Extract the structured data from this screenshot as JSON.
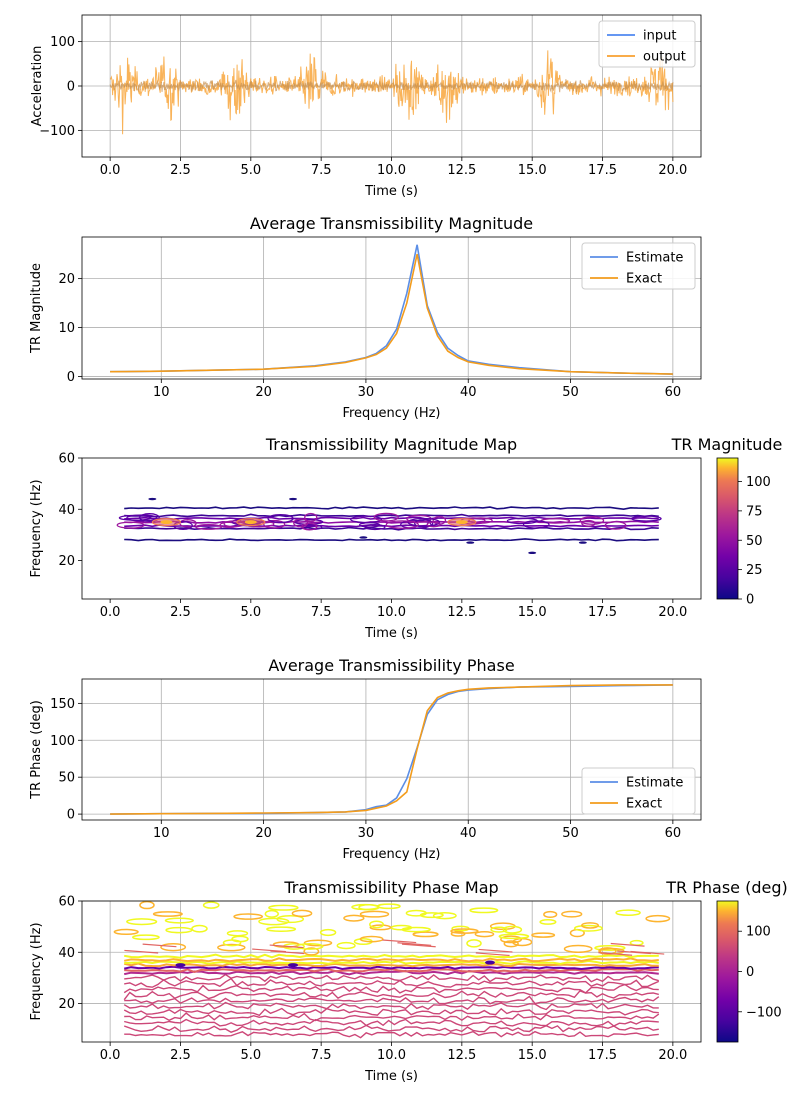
{
  "colors": {
    "input": "#4f88f0",
    "output": "#f8a030",
    "estimate": "#5b8ee6",
    "exact": "#f39c1c",
    "grid": "#b0b0b0"
  },
  "chart_data": [
    {
      "id": "time-history",
      "type": "line",
      "title": "",
      "xlabel": "Time (s)",
      "ylabel": "Acceleration",
      "xlim": [
        -1.0,
        21.0
      ],
      "ylim": [
        -160,
        160
      ],
      "xticks": [
        0.0,
        2.5,
        5.0,
        7.5,
        10.0,
        12.5,
        15.0,
        17.5,
        20.0
      ],
      "xtick_labels": [
        "0.0",
        "2.5",
        "5.0",
        "7.5",
        "10.0",
        "12.5",
        "15.0",
        "17.5",
        "20.0"
      ],
      "yticks": [
        -100,
        0,
        100
      ],
      "ytick_labels": [
        "−100",
        "0",
        "100"
      ],
      "grid": true,
      "legend": "top-right",
      "series": [
        {
          "name": "input",
          "color": "#4f88f0",
          "amplitude": 20
        },
        {
          "name": "output",
          "color": "#f8a030",
          "amplitude": 145,
          "burst_times": [
            0.5,
            2.0,
            4.5,
            7.2,
            10.5,
            12.0,
            15.6,
            19.5
          ]
        }
      ],
      "duration": 20.0
    },
    {
      "id": "avg-tr-magnitude",
      "type": "line",
      "title": "Average Transmissibility Magnitude",
      "xlabel": "Frequency (Hz)",
      "ylabel": "TR Magnitude",
      "xlim": [
        2.25,
        62.75
      ],
      "ylim": [
        -0.5,
        28.5
      ],
      "xticks": [
        10,
        20,
        30,
        40,
        50,
        60
      ],
      "xtick_labels": [
        "10",
        "20",
        "30",
        "40",
        "50",
        "60"
      ],
      "yticks": [
        0,
        10,
        20
      ],
      "ytick_labels": [
        "0",
        "10",
        "20"
      ],
      "grid": true,
      "legend": "top-right",
      "x": [
        5,
        10,
        15,
        20,
        25,
        28,
        30,
        31,
        32,
        33,
        34,
        35,
        36,
        37,
        38,
        39,
        40,
        42,
        45,
        50,
        55,
        60
      ],
      "series": [
        {
          "name": "Estimate",
          "color": "#5b8ee6",
          "values": [
            1.0,
            1.1,
            1.3,
            1.5,
            2.2,
            3.0,
            3.9,
            4.7,
            6.3,
            9.7,
            17.0,
            26.9,
            14.5,
            9.0,
            5.8,
            4.3,
            3.2,
            2.5,
            1.8,
            1.0,
            0.7,
            0.5
          ]
        },
        {
          "name": "Exact",
          "color": "#f39c1c",
          "values": [
            1.0,
            1.1,
            1.3,
            1.5,
            2.1,
            2.9,
            3.8,
            4.5,
            5.8,
            8.8,
            15.0,
            25.0,
            14.0,
            8.3,
            5.2,
            3.9,
            3.0,
            2.3,
            1.6,
            1.0,
            0.7,
            0.5
          ]
        }
      ]
    },
    {
      "id": "tr-magnitude-map",
      "type": "heatmap",
      "title": "Transmissibility Magnitude Map",
      "xlabel": "Time (s)",
      "ylabel": "Frequency (Hz)",
      "xlim": [
        -1.0,
        21.0
      ],
      "ylim": [
        5,
        60
      ],
      "xticks": [
        0.0,
        2.5,
        5.0,
        7.5,
        10.0,
        12.5,
        15.0,
        17.5,
        20.0
      ],
      "xtick_labels": [
        "0.0",
        "2.5",
        "5.0",
        "7.5",
        "10.0",
        "12.5",
        "15.0",
        "17.5",
        "20.0"
      ],
      "yticks": [
        20,
        40,
        60
      ],
      "ytick_labels": [
        "20",
        "40",
        "60"
      ],
      "grid": false,
      "colorbar": {
        "label": "TR Magnitude",
        "min": 0,
        "max": 120,
        "ticks": [
          0,
          25,
          50,
          75,
          100
        ],
        "tick_labels": [
          "0",
          "25",
          "50",
          "75",
          "100"
        ]
      },
      "band_hz": [
        27,
        41
      ],
      "peak_hz": 35,
      "time_range": [
        0.5,
        19.5
      ],
      "hot_spots": [
        {
          "t": 2.0,
          "f": 35,
          "v": 95
        },
        {
          "t": 5.0,
          "f": 35,
          "v": 110
        },
        {
          "t": 12.5,
          "f": 35,
          "v": 80
        }
      ]
    },
    {
      "id": "avg-tr-phase",
      "type": "line",
      "title": "Average Transmissibility Phase",
      "xlabel": "Frequency (Hz)",
      "ylabel": "TR Phase (deg)",
      "xlim": [
        2.25,
        62.75
      ],
      "ylim": [
        -8,
        183
      ],
      "xticks": [
        10,
        20,
        30,
        40,
        50,
        60
      ],
      "xtick_labels": [
        "10",
        "20",
        "30",
        "40",
        "50",
        "60"
      ],
      "yticks": [
        0,
        50,
        100,
        150
      ],
      "ytick_labels": [
        "0",
        "50",
        "100",
        "150"
      ],
      "grid": true,
      "legend": "bottom-right",
      "x": [
        5,
        10,
        15,
        20,
        25,
        28,
        30,
        31,
        32,
        33,
        34,
        35,
        36,
        37,
        38,
        39,
        40,
        42,
        45,
        50,
        55,
        60
      ],
      "series": [
        {
          "name": "Estimate",
          "color": "#5b8ee6",
          "values": [
            0,
            0.5,
            1,
            1,
            2,
            3,
            6,
            10,
            12,
            22,
            48,
            90,
            135,
            155,
            162,
            166,
            168,
            170,
            172,
            173,
            174,
            175
          ]
        },
        {
          "name": "Exact",
          "color": "#f39c1c",
          "values": [
            0,
            0.5,
            1,
            1.5,
            2,
            3,
            5,
            8,
            11,
            18,
            30,
            88,
            140,
            158,
            164,
            167,
            169,
            171,
            172,
            174,
            175,
            175
          ]
        }
      ]
    },
    {
      "id": "tr-phase-map",
      "type": "heatmap",
      "title": "Transmissibility Phase Map",
      "xlabel": "Time (s)",
      "ylabel": "Frequency (Hz)",
      "xlim": [
        -1.0,
        21.0
      ],
      "ylim": [
        5,
        60
      ],
      "xticks": [
        0.0,
        2.5,
        5.0,
        7.5,
        10.0,
        12.5,
        15.0,
        17.5,
        20.0
      ],
      "xtick_labels": [
        "0.0",
        "2.5",
        "5.0",
        "7.5",
        "10.0",
        "12.5",
        "15.0",
        "17.5",
        "20.0"
      ],
      "yticks": [
        20,
        40,
        60
      ],
      "ytick_labels": [
        "20",
        "40",
        "60"
      ],
      "grid": true,
      "colorbar": {
        "label": "TR Phase (deg)",
        "min": -175,
        "max": 175,
        "ticks": [
          -100,
          0,
          100
        ],
        "tick_labels": [
          "−100",
          "0",
          "100"
        ]
      },
      "transition_hz": 35,
      "time_range": [
        0.5,
        19.5
      ]
    }
  ]
}
